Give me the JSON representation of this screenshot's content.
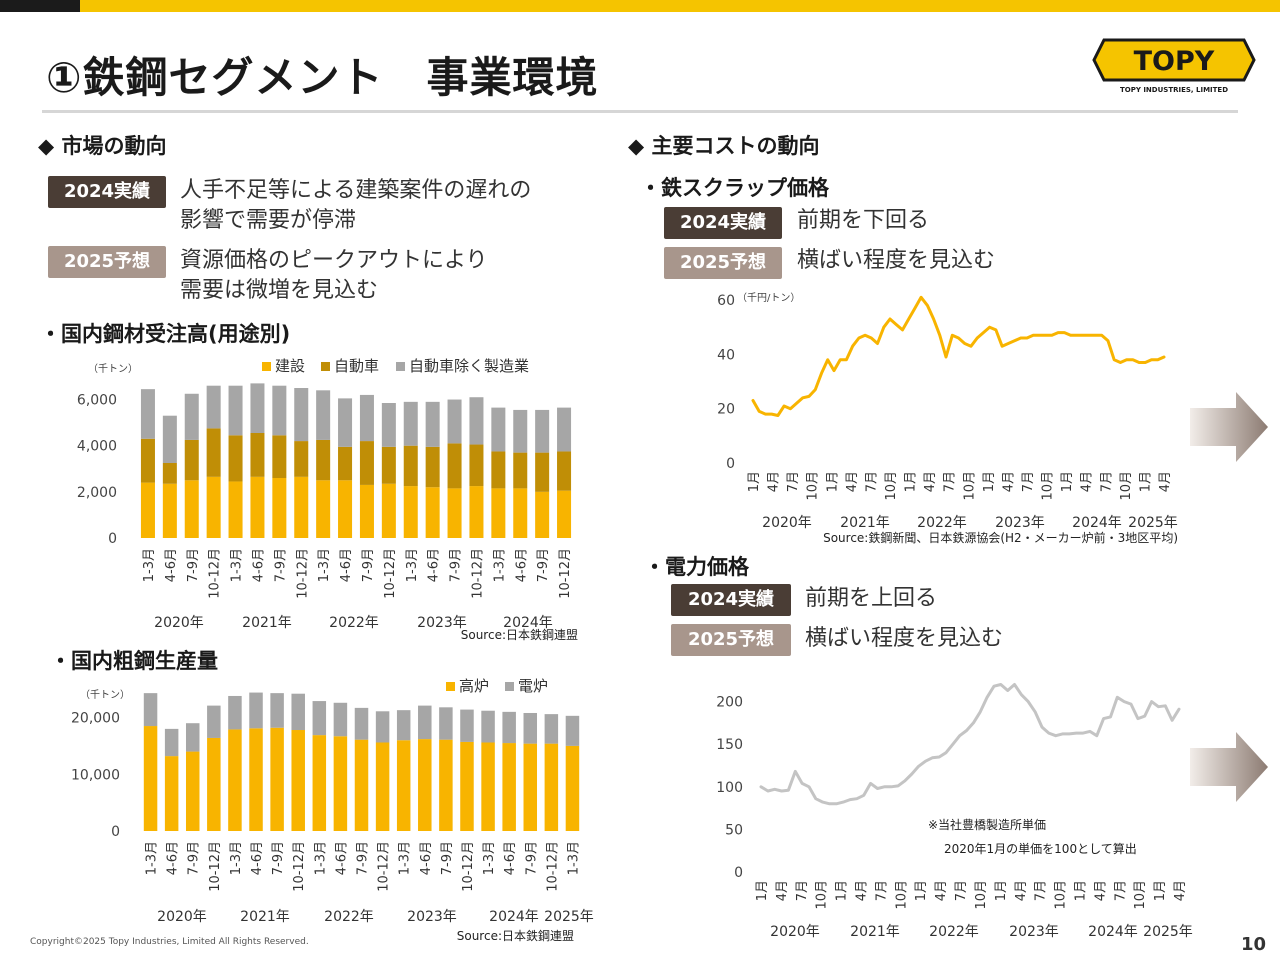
{
  "page": {
    "title": "①鉄鋼セグメント　事業環境",
    "number": "10",
    "copyright": "Copyright©2025 Topy Industries, Limited All Rights Reserved."
  },
  "logo": {
    "text": "TOPY",
    "subtitle": "TOPY INDUSTRIES, LIMITED"
  },
  "colors": {
    "accent_yellow": "#f5c400",
    "badge_dark": "#4a3d35",
    "badge_light": "#a8968c",
    "construction": "#f8b400",
    "auto": "#c08e06",
    "gray": "#a6a6a6",
    "line_yellow": "#f8b400",
    "line_gray": "#c4c4c4"
  },
  "market": {
    "heading": "◆ 市場の動向",
    "actual_badge": "2024実績",
    "actual_text_1": "人手不足等による建築案件の遅れの",
    "actual_text_2": "影響で需要が停滞",
    "forecast_badge": "2025予想",
    "forecast_text_1": "資源価格のピークアウトにより",
    "forecast_text_2": "需要は微増を見込む"
  },
  "cost": {
    "heading": "◆ 主要コストの動向",
    "scrap_heading": "・鉄スクラップ価格",
    "scrap_actual_badge": "2024実績",
    "scrap_actual_text": "前期を下回る",
    "scrap_forecast_badge": "2025予想",
    "scrap_forecast_text": "横ばい程度を見込む",
    "power_heading": "・電力価格",
    "power_actual_badge": "2024実績",
    "power_actual_text": "前期を上回る",
    "power_forecast_badge": "2025予想",
    "power_forecast_text": "横ばい程度を見込む"
  },
  "chart_data": [
    {
      "type": "bar",
      "stacked": true,
      "title": "・国内鋼材受注高(用途別)",
      "unit_label": "（千トン）",
      "source": "Source:日本鉄鋼連盟",
      "categories": [
        "1-3月",
        "4-6月",
        "7-9月",
        "10-12月",
        "1-3月",
        "4-6月",
        "7-9月",
        "10-12月",
        "1-3月",
        "4-6月",
        "7-9月",
        "10-12月",
        "1-3月",
        "4-6月",
        "7-9月",
        "10-12月",
        "1-3月",
        "4-6月",
        "7-9月",
        "10-12月"
      ],
      "year_labels": [
        "2020年",
        "2021年",
        "2022年",
        "2023年",
        "2024年"
      ],
      "series": [
        {
          "name": "建設",
          "values": [
            2400,
            2350,
            2500,
            2650,
            2450,
            2650,
            2600,
            2650,
            2500,
            2500,
            2300,
            2350,
            2250,
            2200,
            2150,
            2250,
            2150,
            2150,
            2000,
            2050
          ]
        },
        {
          "name": "自動車",
          "values": [
            1900,
            900,
            1750,
            2100,
            2000,
            1900,
            1850,
            1550,
            1750,
            1450,
            1900,
            1600,
            1750,
            1750,
            1950,
            1800,
            1600,
            1550,
            1700,
            1700
          ]
        },
        {
          "name": "自動車除く製造業",
          "values": [
            2150,
            2050,
            2000,
            1850,
            2150,
            2150,
            2150,
            2300,
            2150,
            2100,
            2000,
            1900,
            1900,
            1950,
            1900,
            2050,
            1900,
            1850,
            1850,
            1900
          ]
        }
      ],
      "ylim": [
        0,
        6500
      ],
      "yticks": [
        "0",
        "2,000",
        "4,000",
        "6,000"
      ]
    },
    {
      "type": "bar",
      "stacked": true,
      "title": "・国内粗鋼生産量",
      "unit_label": "（千トン）",
      "source": "Source:日本鉄鋼連盟",
      "categories": [
        "1-3月",
        "4-6月",
        "7-9月",
        "10-12月",
        "1-3月",
        "4-6月",
        "7-9月",
        "10-12月",
        "1-3月",
        "4-6月",
        "7-9月",
        "10-12月",
        "1-3月",
        "4-6月",
        "7-9月",
        "10-12月",
        "1-3月",
        "4-6月",
        "7-9月",
        "10-12月",
        "1-3月"
      ],
      "year_labels": [
        "2020年",
        "2021年",
        "2022年",
        "2023年",
        "2024年",
        "2025年"
      ],
      "series": [
        {
          "name": "高炉",
          "values": [
            18500,
            13200,
            14000,
            16400,
            17900,
            18100,
            18200,
            17800,
            16900,
            16700,
            16100,
            15600,
            16000,
            16200,
            16100,
            15700,
            15600,
            15500,
            15400,
            15400,
            15000
          ]
        },
        {
          "name": "電炉",
          "values": [
            5800,
            4800,
            5000,
            5700,
            5900,
            6300,
            6100,
            6400,
            6000,
            5900,
            5600,
            5500,
            5300,
            5900,
            5700,
            5700,
            5600,
            5500,
            5400,
            5200,
            5300
          ]
        }
      ],
      "ylim": [
        0,
        24500
      ],
      "yticks": [
        "0",
        "10,000",
        "20,000"
      ]
    },
    {
      "type": "line",
      "title": "・鉄スクラップ価格",
      "unit_label": "（千円/トン）",
      "source": "Source:鉄鋼新聞、日本鉄源協会(H2・メーカー炉前・3地区平均)",
      "x_tick_labels": [
        "1月",
        "4月",
        "7月",
        "10月",
        "1月",
        "4月",
        "7月",
        "10月",
        "1月",
        "4月",
        "7月",
        "10月",
        "1月",
        "4月",
        "7月",
        "10月",
        "1月",
        "4月",
        "7月",
        "10月",
        "1月",
        "4月"
      ],
      "year_labels": [
        "2020年",
        "2021年",
        "2022年",
        "2023年",
        "2024年",
        "2025年"
      ],
      "values": [
        23,
        19,
        18,
        18,
        17.5,
        21,
        20,
        22,
        24,
        24.5,
        27,
        33,
        38,
        34,
        38,
        38,
        43,
        46,
        47,
        46,
        44,
        50,
        53,
        51,
        49,
        53,
        57,
        61,
        58,
        53,
        47,
        39,
        47,
        46,
        44,
        43,
        46,
        48,
        50,
        49,
        43,
        44,
        45,
        46,
        46,
        47,
        47,
        47,
        47,
        48,
        48,
        47,
        47,
        47,
        47,
        47,
        47,
        45,
        38,
        37,
        38,
        38,
        37,
        37,
        38,
        38,
        39
      ],
      "ylim": [
        0,
        60
      ],
      "yticks": [
        "0",
        "20",
        "40",
        "60"
      ]
    },
    {
      "type": "line",
      "title": "・電力価格",
      "note_1": "※当社豊橋製造所単価",
      "note_2": "2020年1月の単価を100として算出",
      "x_tick_labels": [
        "1月",
        "4月",
        "7月",
        "10月",
        "1月",
        "4月",
        "7月",
        "10月",
        "1月",
        "4月",
        "7月",
        "10月",
        "1月",
        "4月",
        "7月",
        "10月",
        "1月",
        "4月",
        "7月",
        "10月",
        "1月",
        "4月"
      ],
      "year_labels": [
        "2020年",
        "2021年",
        "2022年",
        "2023年",
        "2024年",
        "2025年"
      ],
      "values": [
        100,
        95,
        97,
        95,
        96,
        118,
        104,
        100,
        86,
        82,
        80,
        80,
        82,
        85,
        86,
        90,
        104,
        98,
        100,
        100,
        101,
        107,
        115,
        124,
        130,
        134,
        135,
        140,
        150,
        160,
        166,
        175,
        188,
        205,
        218,
        220,
        213,
        220,
        208,
        200,
        188,
        170,
        163,
        160,
        162,
        162,
        163,
        163,
        165,
        160,
        180,
        182,
        205,
        200,
        197,
        180,
        183,
        200,
        194,
        195,
        178,
        191
      ],
      "ylim": [
        0,
        230
      ],
      "yticks": [
        "0",
        "50",
        "100",
        "150",
        "200"
      ]
    }
  ]
}
